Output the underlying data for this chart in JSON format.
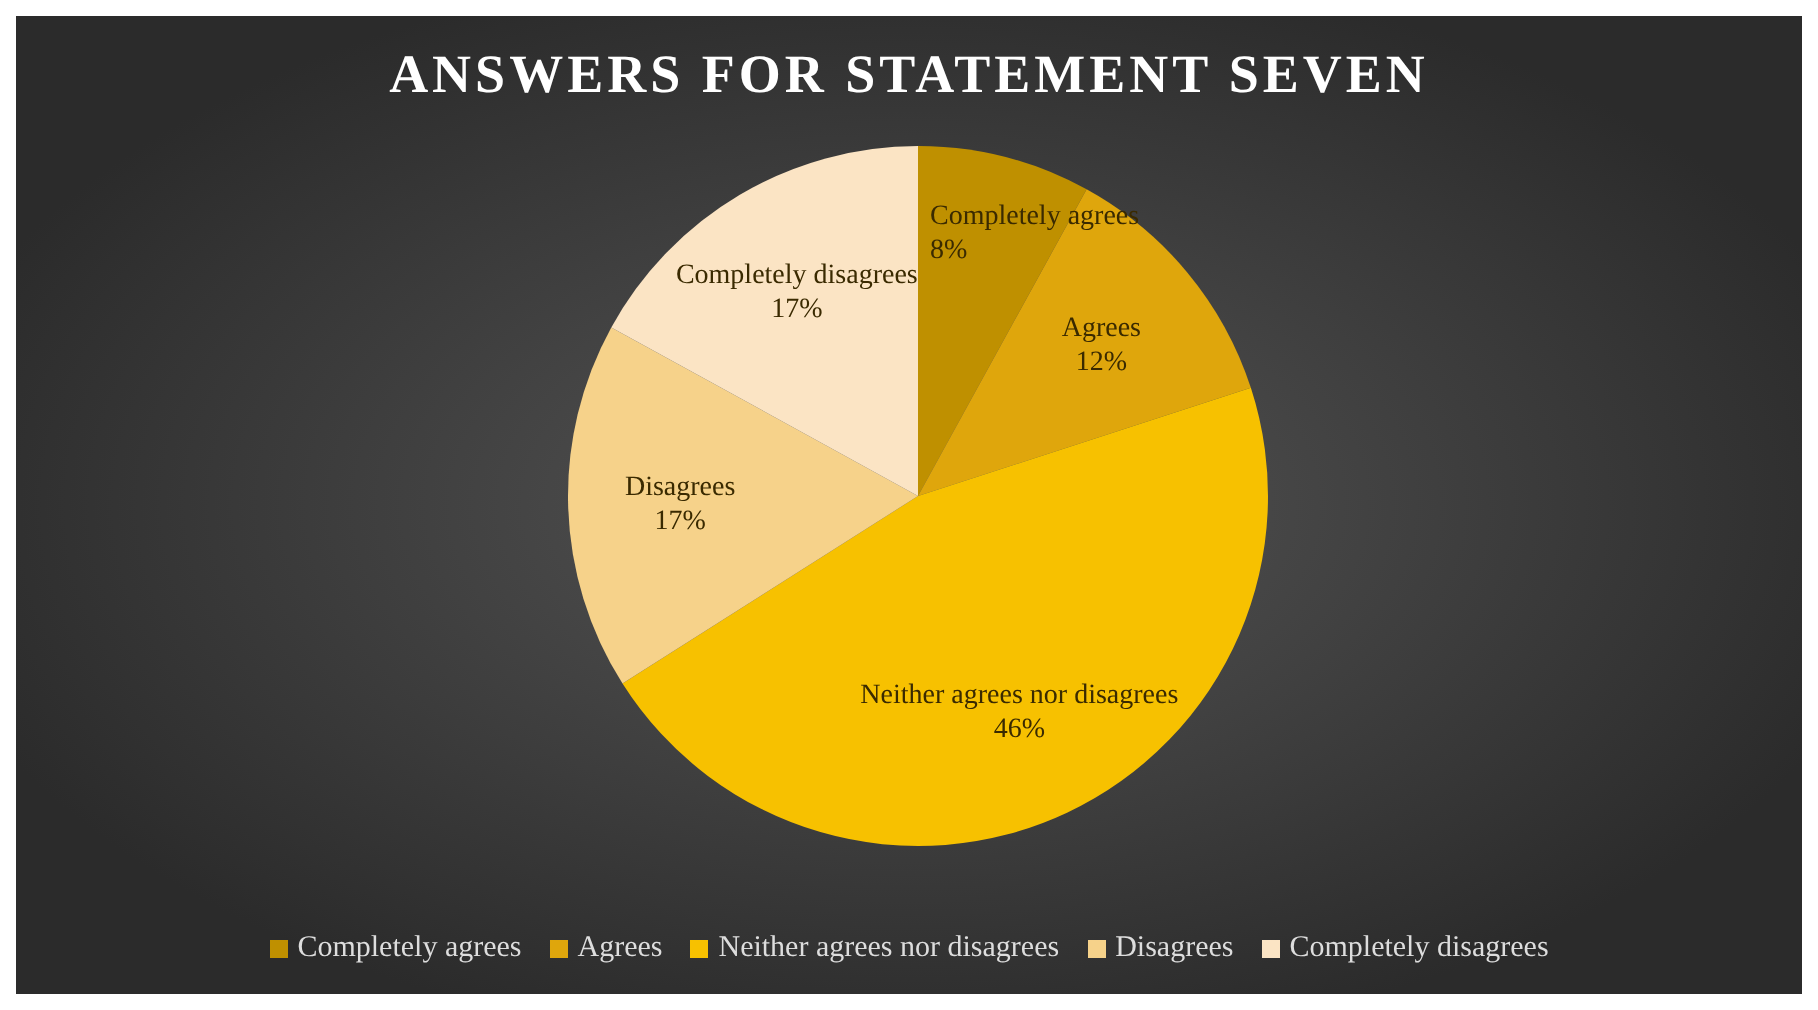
{
  "chart_data": {
    "type": "pie",
    "title": "ANSWERS FOR STATEMENT SEVEN",
    "categories": [
      "Completely agrees",
      "Agrees",
      "Neither agrees nor disagrees",
      "Disagrees",
      "Completely disagrees"
    ],
    "values": [
      8,
      12,
      46,
      17,
      17
    ],
    "value_labels": [
      "8%",
      "12%",
      "46%",
      "17%",
      "17%"
    ],
    "colors": [
      "#bf9000",
      "#dfa60c",
      "#f7c100",
      "#f6d28a",
      "#fbe4c4"
    ],
    "legend": "bottom"
  }
}
